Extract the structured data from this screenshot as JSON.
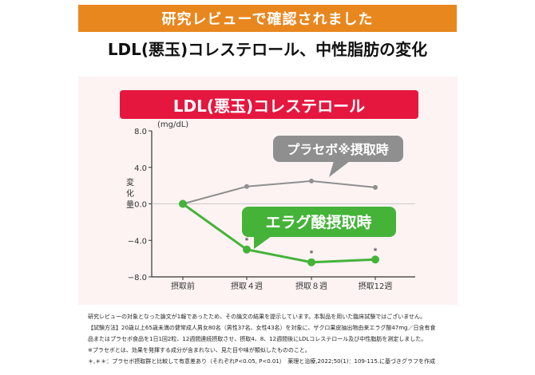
{
  "header": {
    "banner": "研究レビューで確認されました",
    "headline": "LDL(悪玉)コレステロール、中性脂肪の変化"
  },
  "colors": {
    "banner": "#e8871e",
    "title_bg": "#e5173f",
    "panel_bg": "#fdf3f3",
    "placebo": "#8f8f8f",
    "ellagic": "#44b338",
    "axis": "#333333"
  },
  "chart_data": {
    "type": "line",
    "title": "LDL(悪玉)コレステロール",
    "unit": "(mg/dL)",
    "ylabel": "変化量",
    "ylim": [
      -8.0,
      8.0
    ],
    "yticks": [
      "8.0",
      "4.0",
      "0.0",
      "−4.0",
      "−8.0"
    ],
    "categories": [
      "摂取前",
      "摂取４週",
      "摂取８週",
      "摂取12週"
    ],
    "series": [
      {
        "name": "プラセボ※摂取時",
        "values": [
          0.0,
          1.9,
          2.5,
          1.8
        ]
      },
      {
        "name": "エラグ酸摂取時",
        "values": [
          0.0,
          -5.0,
          -6.4,
          -6.1
        ],
        "significance": [
          "",
          "*",
          "*",
          "*"
        ]
      }
    ]
  },
  "notes": [
    "研究レビューの対象となった論文が1報であったため、その論文の結果を提示しています。本製品を用いた臨床試験ではございません。",
    "【試験方法】20歳以上65歳未満の健常成人男女80名（男性37名、女性43名）を対象に、ザクロ果皮抽出物由来エラグ酸47mg／日含有食",
    "品またはプラセボ食品を1日1回2粒、12週間連続摂取させ、摂取4、8、12週間後にLDLコレステロール及び中性脂肪を測定しました。",
    "※プラセボとは、効果を発揮する成分が含まれない、見た目や味が類似したもののこと。",
    "＊,＊＊：プラセボ摂取群と比較して有意差あり（それぞれP<0.05, P<0.01）　薬理と治療,2022;50(1)：109-115.に基づきグラフを作成"
  ]
}
